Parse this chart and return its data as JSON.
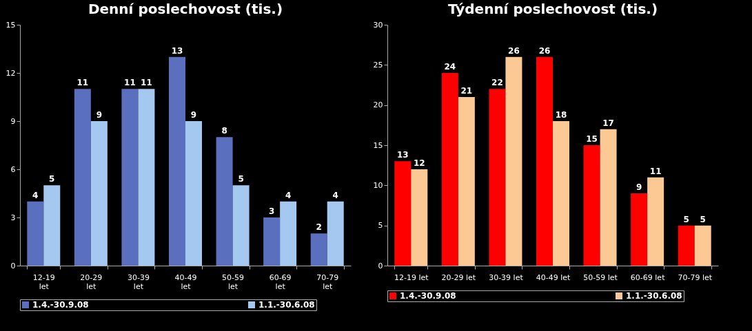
{
  "chart_data": [
    {
      "type": "bar",
      "title": "Denní poslechovost (tis.)",
      "categories": [
        "12-19 let",
        "20-29 let",
        "30-39 let",
        "40-49 let",
        "50-59 let",
        "60-69 let",
        "70-79 let"
      ],
      "series": [
        {
          "name": "1.4.-30.9.08",
          "color": "#5b6fbf",
          "values": [
            4,
            11,
            11,
            13,
            8,
            3,
            2
          ]
        },
        {
          "name": "1.1.-30.6.08",
          "color": "#a4c8f0",
          "values": [
            5,
            9,
            11,
            9,
            5,
            4,
            4
          ]
        }
      ],
      "ylim": [
        0,
        15
      ],
      "yticks": [
        0,
        3,
        6,
        9,
        12,
        15
      ],
      "grid": false,
      "legend": "bottom",
      "data_labels": true
    },
    {
      "type": "bar",
      "title": "Týdenní poslechovost (tis.)",
      "categories": [
        "12-19 let",
        "20-29 let",
        "30-39 let",
        "40-49 let",
        "50-59 let",
        "60-69 let",
        "70-79 let"
      ],
      "series": [
        {
          "name": "1.4.-30.9.08",
          "color": "#ff0000",
          "values": [
            13,
            24,
            22,
            26,
            15,
            9,
            5
          ]
        },
        {
          "name": "1.1.-30.6.08",
          "color": "#fcc894",
          "values": [
            12,
            21,
            26,
            18,
            17,
            11,
            5
          ]
        }
      ],
      "ylim": [
        0,
        30
      ],
      "yticks": [
        0,
        5,
        10,
        15,
        20,
        25,
        30
      ],
      "grid": false,
      "legend": "bottom",
      "data_labels": true
    }
  ]
}
